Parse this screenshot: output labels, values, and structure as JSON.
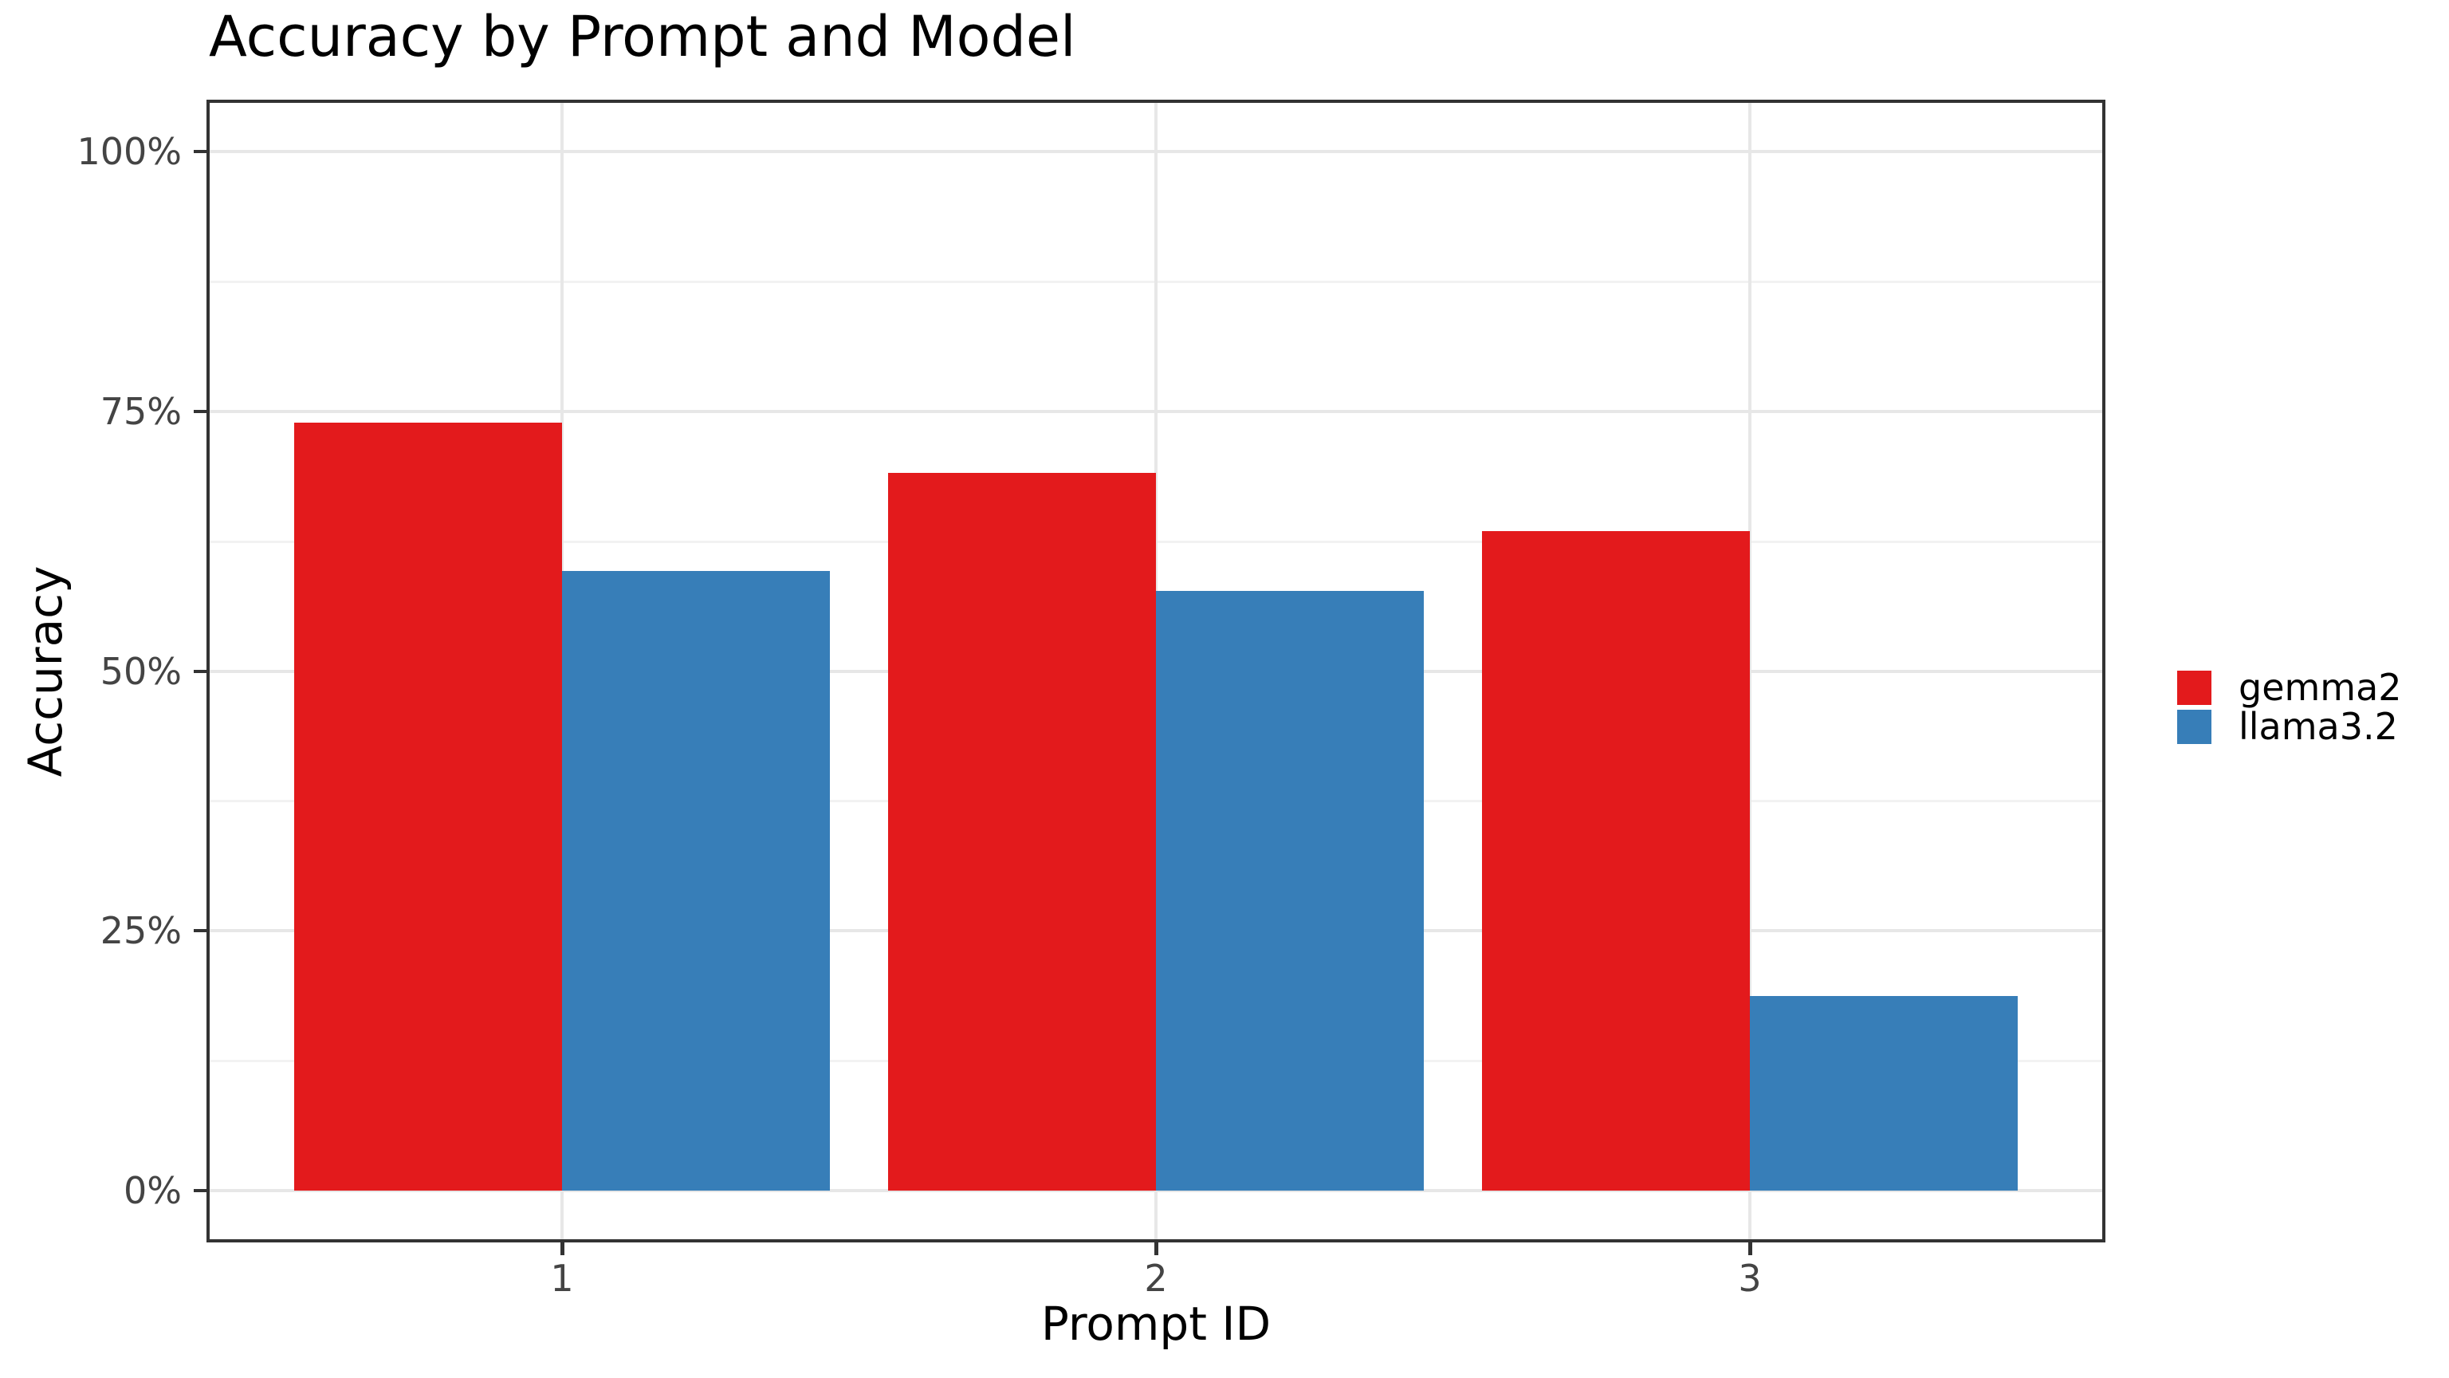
{
  "chart_data": {
    "type": "bar",
    "title": "Accuracy by Prompt and Model",
    "xlabel": "Prompt ID",
    "ylabel": "Accuracy",
    "categories": [
      "1",
      "2",
      "3"
    ],
    "series": [
      {
        "name": "gemma2",
        "color": "#e31a1c",
        "values": [
          73.9,
          69.1,
          63.5
        ]
      },
      {
        "name": "llama3.2",
        "color": "#377eb8",
        "values": [
          59.6,
          57.7,
          18.7
        ]
      }
    ],
    "y_axis": {
      "range": [
        0,
        100
      ],
      "unit": "percent",
      "ticks": [
        {
          "label": "0%",
          "value": 0
        },
        {
          "label": "25%",
          "value": 25
        },
        {
          "label": "50%",
          "value": 50
        },
        {
          "label": "75%",
          "value": 75
        },
        {
          "label": "100%",
          "value": 100
        }
      ],
      "minor_values": [
        12.5,
        37.5,
        62.5,
        87.5
      ]
    },
    "legend_position": "right",
    "grid": true,
    "colors": {
      "gridline_major": "#e7e7e7",
      "gridline_minor": "#f2f2f2",
      "panel_border": "#333333",
      "tick_text": "#444444",
      "background": "#ffffff"
    }
  }
}
